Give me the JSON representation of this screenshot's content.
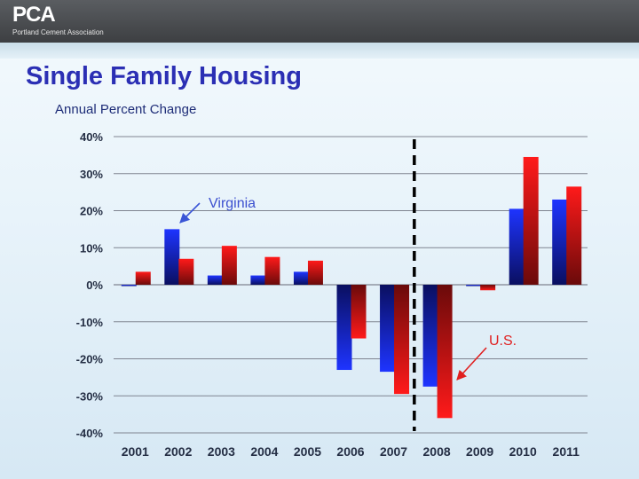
{
  "header": {
    "logo_text": "PCA",
    "logo_subtext": "Portland Cement Association"
  },
  "slide": {
    "title": "Single Family Housing",
    "subtitle": "Annual Percent Change"
  },
  "colors": {
    "virginia": "#1b2ce8",
    "us": "#e8141a",
    "gridline": "#7f8490",
    "divider": "#000000"
  },
  "chart_data": {
    "type": "bar",
    "title": "Single Family Housing",
    "subtitle": "Annual Percent Change",
    "xlabel": "",
    "ylabel": "",
    "categories": [
      "2001",
      "2002",
      "2003",
      "2004",
      "2005",
      "2006",
      "2007",
      "2008",
      "2009",
      "2010",
      "2011"
    ],
    "series": [
      {
        "name": "Virginia",
        "values": [
          0,
          15,
          2.5,
          2.5,
          3.5,
          -23,
          -23.5,
          -27.5,
          0,
          20.5,
          23
        ]
      },
      {
        "name": "U.S.",
        "values": [
          3.5,
          7,
          10.5,
          7.5,
          6.5,
          -14.5,
          -29.5,
          -36,
          -1.5,
          34.5,
          26.5
        ]
      }
    ],
    "ylim": [
      -40,
      40
    ],
    "yticks": [
      40,
      30,
      20,
      10,
      0,
      -10,
      -20,
      -30,
      -40
    ],
    "ytick_labels": [
      "40%",
      "30%",
      "20%",
      "10%",
      "0%",
      "-10%",
      "-20%",
      "-30%",
      "-40%"
    ],
    "grid": true,
    "legend": "none",
    "divider_after": "2007",
    "annotations": [
      {
        "text": "Virginia",
        "points_to": "Virginia 2002"
      },
      {
        "text": "U.S.",
        "points_to": "U.S. 2008"
      }
    ]
  }
}
